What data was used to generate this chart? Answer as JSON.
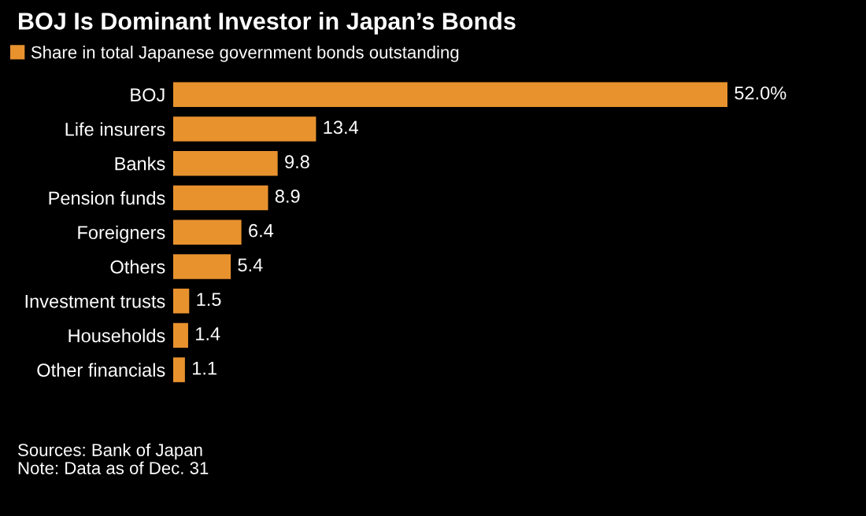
{
  "chart_data": {
    "type": "bar",
    "orientation": "horizontal",
    "title": "BOJ Is Dominant Investor in Japan’s Bonds",
    "categories": [
      "BOJ",
      "Life insurers",
      "Banks",
      "Pension funds",
      "Foreigners",
      "Others",
      "Investment trusts",
      "Households",
      "Other financials"
    ],
    "series": [
      {
        "name": "Share in total Japanese government bonds outstanding",
        "color": "#e8922e",
        "values": [
          52.0,
          13.4,
          9.8,
          8.9,
          6.4,
          5.4,
          1.5,
          1.4,
          1.1
        ],
        "value_labels": [
          "52.0%",
          "13.4",
          "9.8",
          "8.9",
          "6.4",
          "5.4",
          "1.5",
          "1.4",
          "1.1"
        ]
      }
    ],
    "legend": "top left",
    "grid": false,
    "annotations": [
      "Sources: Bank of Japan",
      "Note: Data as of Dec. 31"
    ]
  }
}
